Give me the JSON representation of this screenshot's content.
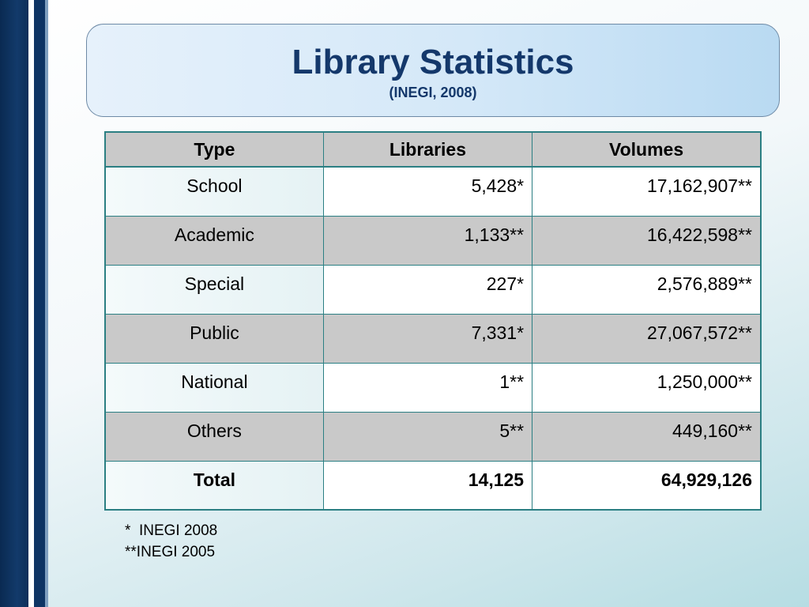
{
  "colors": {
    "title": "#14386b",
    "table_border": "#2b7f83",
    "header_fill": "#c9c9c9",
    "stripe_dark": "#0a2a52"
  },
  "title": {
    "main": "Library Statistics",
    "subtitle": "(INEGI, 2008)"
  },
  "table": {
    "headers": [
      "Type",
      "Libraries",
      "Volumes"
    ],
    "rows": [
      {
        "type": "School",
        "libraries": "5,428*",
        "volumes": "17,162,907**"
      },
      {
        "type": "Academic",
        "libraries": "1,133**",
        "volumes": "16,422,598**"
      },
      {
        "type": "Special",
        "libraries": "227*",
        "volumes": "2,576,889**"
      },
      {
        "type": "Public",
        "libraries": "7,331*",
        "volumes": "27,067,572**"
      },
      {
        "type": "National",
        "libraries": "1**",
        "volumes": "1,250,000**"
      },
      {
        "type": "Others",
        "libraries": "5**",
        "volumes": "449,160**"
      },
      {
        "type": "Total",
        "libraries": "14,125",
        "volumes": "64,929,126"
      }
    ]
  },
  "footnotes": [
    "*  INEGI 2008",
    "**INEGI 2005"
  ]
}
